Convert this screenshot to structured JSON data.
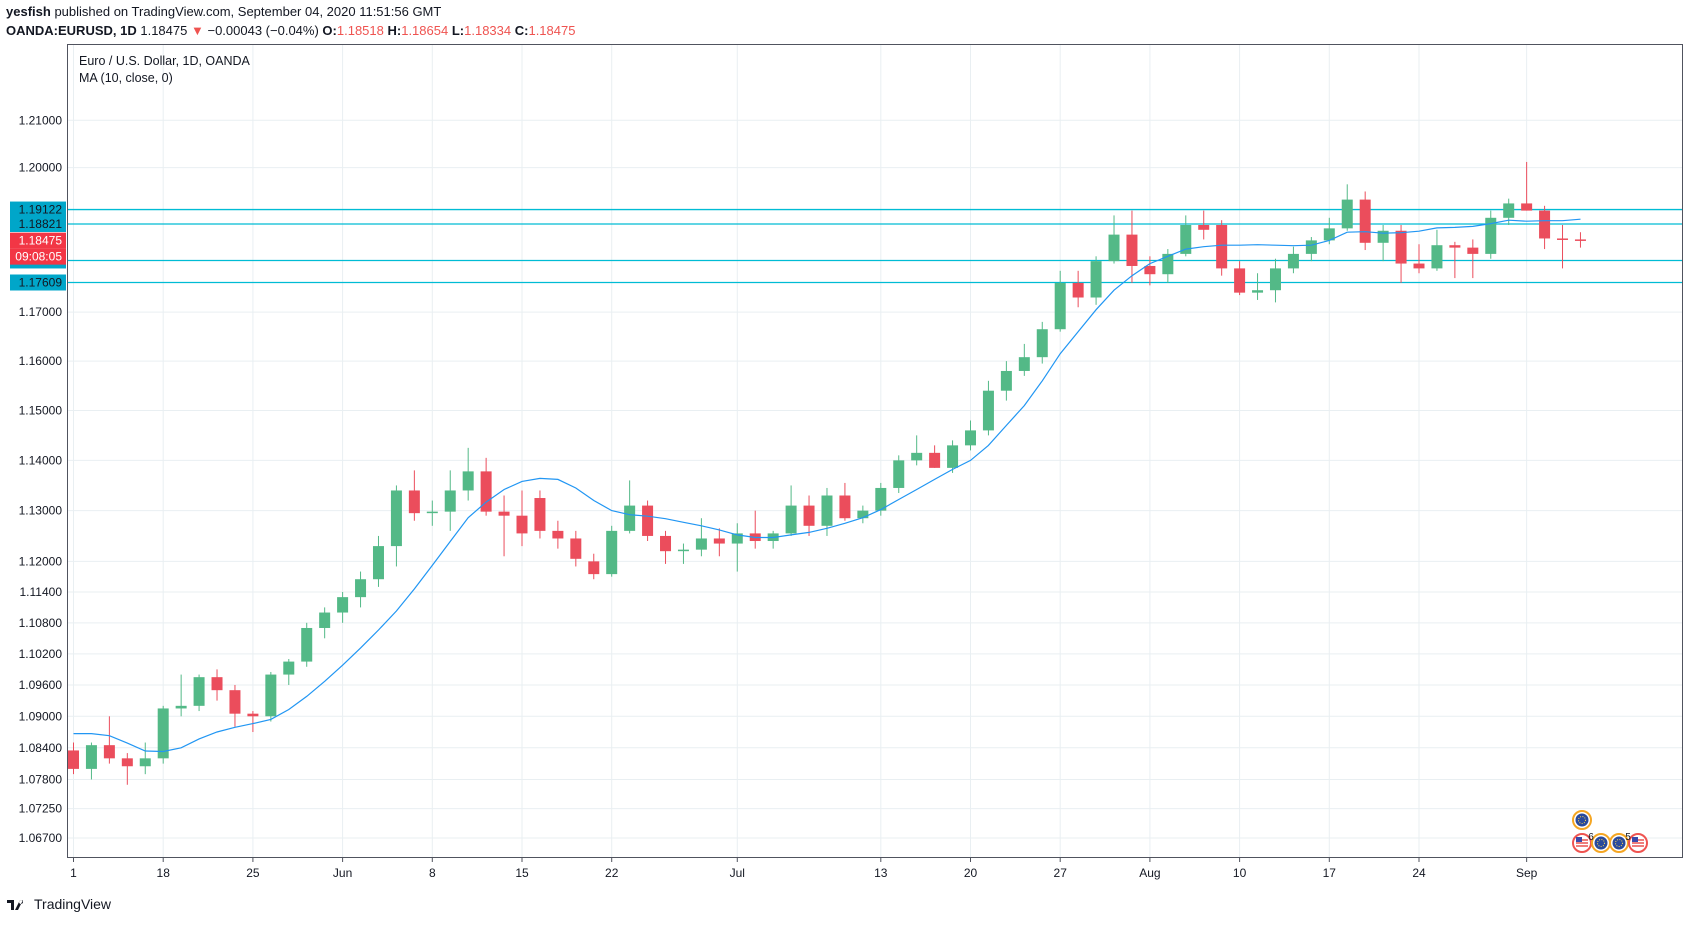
{
  "header": {
    "author": "yesfish",
    "published_prefix": "published on TradingView.com,",
    "datetime": "September 04, 2020 11:51:56 GMT",
    "symbol": "OANDA:EURUSD, 1D",
    "last_price": "1.18475",
    "change_arrow": "▼",
    "change": "−0.00043 (−0.04%)",
    "open_label": "O:",
    "open_value": "1.18518",
    "high_label": "H:",
    "high_value": "1.18654",
    "low_label": "L:",
    "low_value": "1.18334",
    "close_label": "C:",
    "close_value": "1.18475"
  },
  "footer": {
    "brand": "TradingView"
  },
  "colors": {
    "up": "#53b987",
    "down": "#eb4d5c",
    "ma": "#2196f3",
    "hline": "#00bcd4",
    "grid": "#e9eff2",
    "axis_text": "#131722",
    "price_tag": "#f23645"
  },
  "icons": [
    "eu-flag-event-icon",
    "us-flag-event-icon"
  ],
  "chart_data": {
    "type": "candlestick",
    "title": "Euro / U.S. Dollar, 1D, OANDA",
    "indicator": "MA (10, close, 0)",
    "y_scale": "log",
    "ylim": [
      1.067,
      1.219
    ],
    "y_ticks": [
      "1.21000",
      "1.20000",
      "1.19122",
      "1.18821",
      "1.18475",
      "1.18064",
      "1.17609",
      "1.17000",
      "1.16000",
      "1.15000",
      "1.14000",
      "1.13000",
      "1.12000",
      "1.11400",
      "1.10800",
      "1.10200",
      "1.09600",
      "1.09000",
      "1.08400",
      "1.07800",
      "1.07250",
      "1.06700"
    ],
    "x_ticks": [
      {
        "i": 0,
        "label": "1"
      },
      {
        "i": 5,
        "label": "18"
      },
      {
        "i": 10,
        "label": "25"
      },
      {
        "i": 15,
        "label": "Jun"
      },
      {
        "i": 20,
        "label": "8"
      },
      {
        "i": 25,
        "label": "15"
      },
      {
        "i": 30,
        "label": "22"
      },
      {
        "i": 37,
        "label": "Jul"
      },
      {
        "i": 45,
        "label": "13"
      },
      {
        "i": 50,
        "label": "20"
      },
      {
        "i": 55,
        "label": "27"
      },
      {
        "i": 60,
        "label": "Aug"
      },
      {
        "i": 65,
        "label": "10"
      },
      {
        "i": 70,
        "label": "17"
      },
      {
        "i": 75,
        "label": "24"
      },
      {
        "i": 81,
        "label": "Sep"
      }
    ],
    "horizontal_lines": [
      1.19122,
      1.18821,
      1.18064,
      1.17609
    ],
    "current_price": 1.18475,
    "countdown": "09:08:05",
    "event_badges": [
      "6",
      "5"
    ],
    "candles": [
      [
        1.0835,
        1.085,
        1.079,
        1.08
      ],
      [
        1.08,
        1.085,
        1.078,
        1.0845
      ],
      [
        1.0845,
        1.09,
        1.081,
        1.082
      ],
      [
        1.082,
        1.083,
        1.077,
        1.0805
      ],
      [
        1.0805,
        1.085,
        1.079,
        1.082
      ],
      [
        1.082,
        1.092,
        1.081,
        1.0915
      ],
      [
        1.0915,
        1.098,
        1.09,
        1.092
      ],
      [
        1.092,
        1.098,
        1.091,
        1.0975
      ],
      [
        1.0975,
        1.099,
        1.093,
        1.095
      ],
      [
        1.095,
        1.096,
        1.088,
        1.0905
      ],
      [
        1.0905,
        1.091,
        1.087,
        1.09
      ],
      [
        1.09,
        1.0985,
        1.089,
        1.098
      ],
      [
        1.098,
        1.101,
        1.096,
        1.1005
      ],
      [
        1.1005,
        1.108,
        1.0995,
        1.107
      ],
      [
        1.107,
        1.111,
        1.105,
        1.11
      ],
      [
        1.11,
        1.114,
        1.108,
        1.113
      ],
      [
        1.113,
        1.118,
        1.111,
        1.1165
      ],
      [
        1.1165,
        1.125,
        1.115,
        1.123
      ],
      [
        1.123,
        1.135,
        1.119,
        1.134
      ],
      [
        1.134,
        1.138,
        1.128,
        1.1295
      ],
      [
        1.1295,
        1.132,
        1.127,
        1.1298
      ],
      [
        1.1298,
        1.138,
        1.126,
        1.134
      ],
      [
        1.134,
        1.1425,
        1.132,
        1.1378
      ],
      [
        1.1378,
        1.1405,
        1.129,
        1.1298
      ],
      [
        1.1298,
        1.133,
        1.121,
        1.129
      ],
      [
        1.129,
        1.134,
        1.123,
        1.1255
      ],
      [
        1.1325,
        1.134,
        1.1245,
        1.126
      ],
      [
        1.126,
        1.128,
        1.1225,
        1.1245
      ],
      [
        1.1245,
        1.126,
        1.119,
        1.1205
      ],
      [
        1.12,
        1.1215,
        1.1165,
        1.1175
      ],
      [
        1.1175,
        1.127,
        1.117,
        1.126
      ],
      [
        1.126,
        1.136,
        1.1255,
        1.131
      ],
      [
        1.131,
        1.132,
        1.124,
        1.125
      ],
      [
        1.125,
        1.126,
        1.1195,
        1.122
      ],
      [
        1.122,
        1.1235,
        1.1195,
        1.1223
      ],
      [
        1.1223,
        1.1285,
        1.121,
        1.1245
      ],
      [
        1.1245,
        1.1265,
        1.121,
        1.1235
      ],
      [
        1.1235,
        1.1275,
        1.118,
        1.1255
      ],
      [
        1.1255,
        1.13,
        1.1225,
        1.124
      ],
      [
        1.124,
        1.126,
        1.1225,
        1.1255
      ],
      [
        1.1255,
        1.135,
        1.125,
        1.131
      ],
      [
        1.131,
        1.133,
        1.125,
        1.127
      ],
      [
        1.127,
        1.1345,
        1.125,
        1.133
      ],
      [
        1.133,
        1.1355,
        1.128,
        1.1285
      ],
      [
        1.1285,
        1.131,
        1.1275,
        1.13
      ],
      [
        1.13,
        1.1355,
        1.129,
        1.1345
      ],
      [
        1.1345,
        1.141,
        1.1335,
        1.14
      ],
      [
        1.14,
        1.145,
        1.139,
        1.1415
      ],
      [
        1.1415,
        1.143,
        1.1385,
        1.1385
      ],
      [
        1.1385,
        1.144,
        1.1375,
        1.143
      ],
      [
        1.143,
        1.148,
        1.142,
        1.146
      ],
      [
        1.146,
        1.156,
        1.145,
        1.154
      ],
      [
        1.154,
        1.16,
        1.152,
        1.158
      ],
      [
        1.158,
        1.1635,
        1.157,
        1.1608
      ],
      [
        1.1608,
        1.168,
        1.1595,
        1.1665
      ],
      [
        1.1665,
        1.1785,
        1.166,
        1.176
      ],
      [
        1.176,
        1.1785,
        1.171,
        1.173
      ],
      [
        1.173,
        1.1815,
        1.1715,
        1.1805
      ],
      [
        1.1805,
        1.19,
        1.18,
        1.186
      ],
      [
        1.186,
        1.191,
        1.176,
        1.1795
      ],
      [
        1.1795,
        1.1815,
        1.1755,
        1.1778
      ],
      [
        1.1778,
        1.183,
        1.176,
        1.182
      ],
      [
        1.182,
        1.19,
        1.1815,
        1.188
      ],
      [
        1.188,
        1.191,
        1.185,
        1.187
      ],
      [
        1.188,
        1.189,
        1.1775,
        1.179
      ],
      [
        1.179,
        1.1805,
        1.1735,
        1.174
      ],
      [
        1.174,
        1.178,
        1.1725,
        1.1745
      ],
      [
        1.1745,
        1.181,
        1.172,
        1.179
      ],
      [
        1.179,
        1.1835,
        1.178,
        1.182
      ],
      [
        1.182,
        1.1855,
        1.1805,
        1.1848
      ],
      [
        1.1848,
        1.1895,
        1.184,
        1.1873
      ],
      [
        1.1873,
        1.1965,
        1.1868,
        1.1933
      ],
      [
        1.1933,
        1.195,
        1.1828,
        1.1843
      ],
      [
        1.1843,
        1.188,
        1.1805,
        1.1868
      ],
      [
        1.1868,
        1.188,
        1.176,
        1.18
      ],
      [
        1.18,
        1.184,
        1.178,
        1.179
      ],
      [
        1.179,
        1.187,
        1.1785,
        1.1838
      ],
      [
        1.1838,
        1.1845,
        1.177,
        1.1833
      ],
      [
        1.1833,
        1.185,
        1.177,
        1.182
      ],
      [
        1.182,
        1.191,
        1.181,
        1.1895
      ],
      [
        1.1895,
        1.1935,
        1.188,
        1.1925
      ],
      [
        1.1925,
        1.2012,
        1.191,
        1.191
      ],
      [
        1.191,
        1.192,
        1.183,
        1.1852
      ],
      [
        1.1852,
        1.188,
        1.179,
        1.185
      ],
      [
        1.185,
        1.1865,
        1.1833,
        1.1847
      ]
    ],
    "ma_values": [
      1.0867,
      1.0867,
      1.0863,
      1.0849,
      1.0834,
      1.0833,
      1.084,
      1.0857,
      1.087,
      1.0879,
      1.0886,
      1.0894,
      1.0913,
      1.0938,
      1.0967,
      1.0998,
      1.1031,
      1.1066,
      1.1103,
      1.1146,
      1.1192,
      1.1239,
      1.1286,
      1.1317,
      1.1342,
      1.1358,
      1.1364,
      1.1362,
      1.1345,
      1.132,
      1.13,
      1.1292,
      1.1289,
      1.1284,
      1.1277,
      1.127,
      1.1262,
      1.1252,
      1.1247,
      1.1247,
      1.1252,
      1.1257,
      1.1265,
      1.1275,
      1.1286,
      1.1302,
      1.1322,
      1.1342,
      1.1362,
      1.1382,
      1.14,
      1.143,
      1.147,
      1.151,
      1.156,
      1.1615,
      1.166,
      1.1705,
      1.1745,
      1.1775,
      1.18,
      1.1815,
      1.183,
      1.1835,
      1.1838,
      1.1838,
      1.1839,
      1.1838,
      1.1837,
      1.1838,
      1.1848,
      1.1865,
      1.1866,
      1.1863,
      1.1864,
      1.1867,
      1.1874,
      1.1875,
      1.1877,
      1.1883,
      1.189,
      1.1888,
      1.1889,
      1.1889,
      1.1892
    ]
  }
}
